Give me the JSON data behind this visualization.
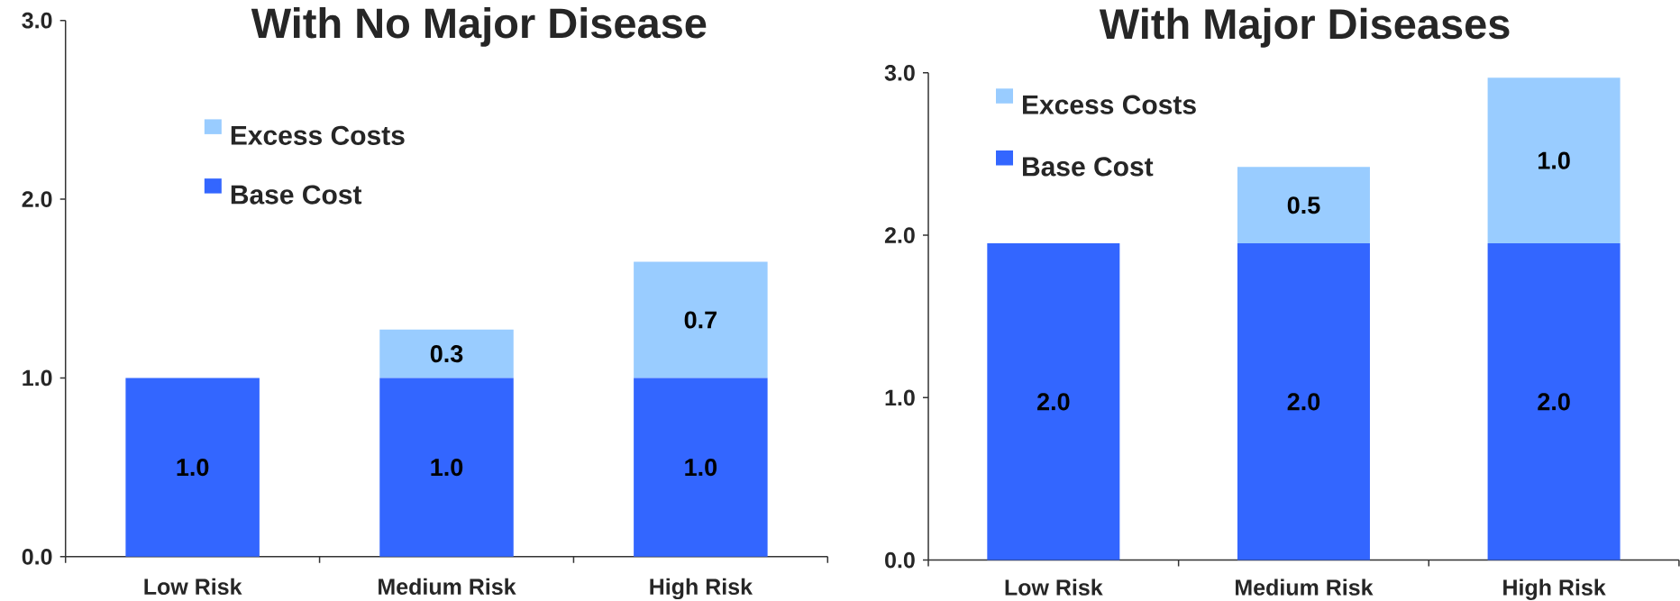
{
  "chart_data": [
    {
      "type": "bar",
      "stacked": true,
      "title": "With No Major Disease",
      "categories": [
        "Low Risk",
        "Medium Risk",
        "High Risk"
      ],
      "series": [
        {
          "name": "Base Cost",
          "color": "#3366ff",
          "values": [
            1.0,
            1.0,
            1.0
          ],
          "value_labels": [
            "1.0",
            "1.0",
            "1.0"
          ]
        },
        {
          "name": "Excess Costs",
          "color": "#99ccff",
          "values": [
            null,
            0.27,
            0.65
          ],
          "value_labels": [
            null,
            "0.3",
            "0.7"
          ]
        }
      ],
      "ylim": [
        0,
        3
      ],
      "yticks": [
        {
          "value": 0,
          "label": "0.0"
        },
        {
          "value": 1,
          "label": "1.0"
        },
        {
          "value": 2,
          "label": "2.0"
        },
        {
          "value": 3,
          "label": "3.0"
        }
      ],
      "legend": "top left"
    },
    {
      "type": "bar",
      "stacked": true,
      "title": "With Major Diseases",
      "categories": [
        "Low Risk",
        "Medium Risk",
        "High Risk"
      ],
      "series": [
        {
          "name": "Base Cost",
          "color": "#3366ff",
          "values": [
            1.95,
            1.95,
            1.95
          ],
          "value_labels": [
            "2.0",
            "2.0",
            "2.0"
          ]
        },
        {
          "name": "Excess Costs",
          "color": "#99ccff",
          "values": [
            null,
            0.47,
            1.02
          ],
          "value_labels": [
            null,
            "0.5",
            "1.0"
          ]
        }
      ],
      "ylim": [
        0,
        3
      ],
      "yticks": [
        {
          "value": 0,
          "label": "0.0"
        },
        {
          "value": 1,
          "label": "1.0"
        },
        {
          "value": 2,
          "label": "2.0"
        },
        {
          "value": 3,
          "label": "3.0"
        }
      ],
      "legend": "top left"
    }
  ]
}
